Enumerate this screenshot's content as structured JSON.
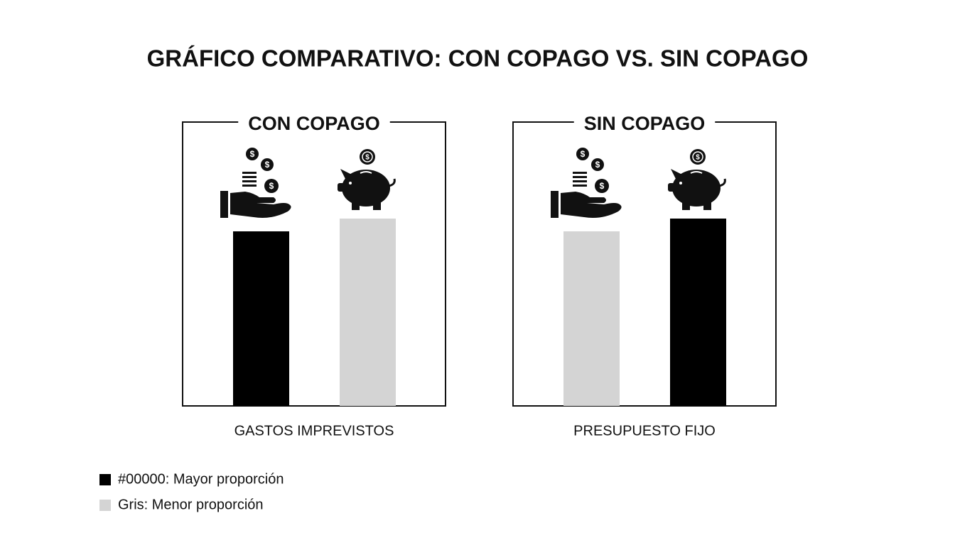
{
  "title": "GRÁFICO COMPARATIVO: CON COPAGO VS. SIN COPAGO",
  "chart_data": [
    {
      "type": "bar",
      "title": "CON COPAGO",
      "x_label": "GASTOS IMPREVISTOS",
      "categories": [
        null,
        null
      ],
      "values": [
        61.5,
        66
      ],
      "colors": [
        "#000000",
        "#d4d4d4"
      ]
    },
    {
      "type": "bar",
      "title": "SIN COPAGO",
      "x_label": "PRESUPUESTO FIJO",
      "categories": [
        null,
        null
      ],
      "values": [
        61.5,
        66
      ],
      "colors": [
        "#d4d4d4",
        "#000000"
      ]
    }
  ],
  "legend": [
    {
      "label": "#00000: Mayor proporción",
      "color": "#000000"
    },
    {
      "label": "Gris: Menor proporción",
      "color": "#d4d4d4"
    }
  ]
}
